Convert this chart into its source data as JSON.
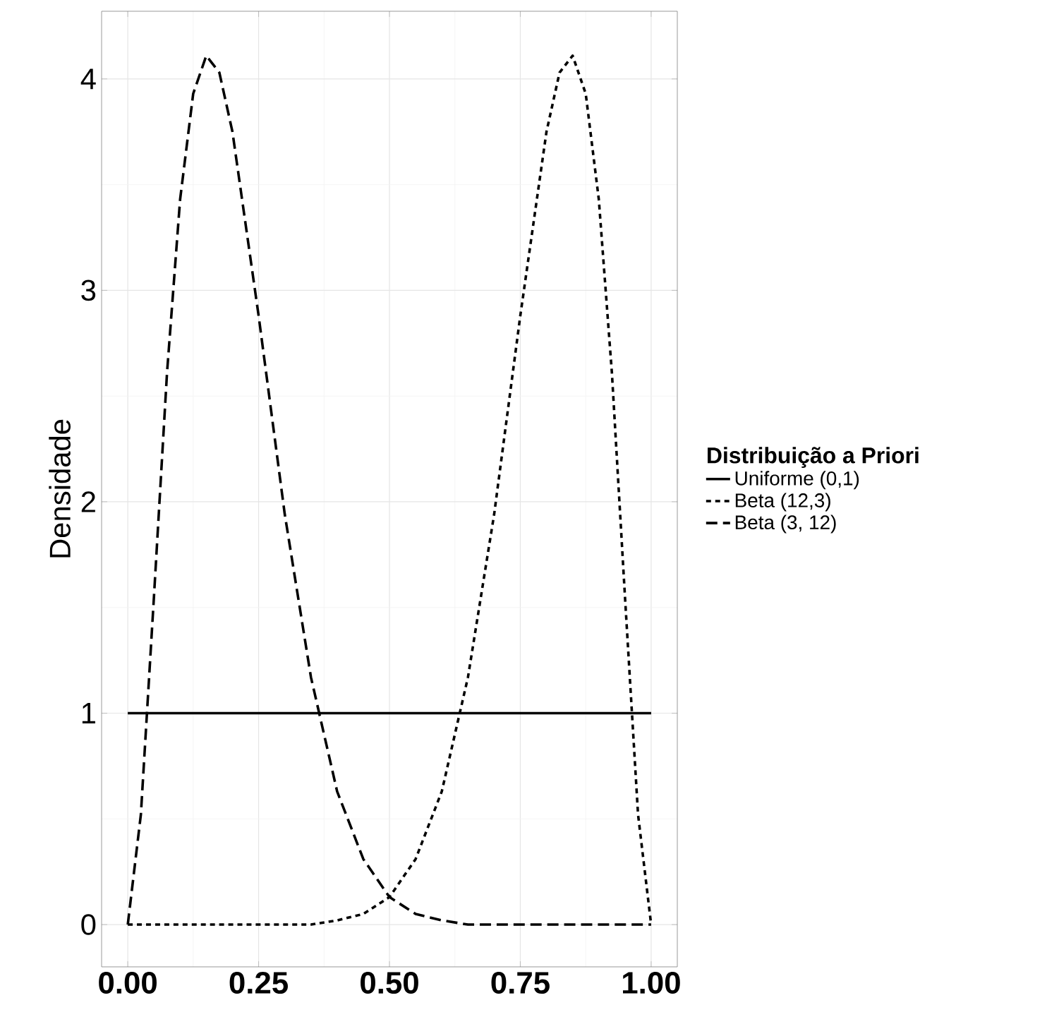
{
  "chart_data": {
    "type": "line",
    "ylabel": "Densidade",
    "legend_title": "Distribuição a Priori",
    "xlim": [
      -0.05,
      1.05
    ],
    "ylim": [
      -0.2,
      4.32
    ],
    "xticks": [
      {
        "value": 0,
        "label": "0.00"
      },
      {
        "value": 0.25,
        "label": "0.25"
      },
      {
        "value": 0.5,
        "label": "0.50"
      },
      {
        "value": 0.75,
        "label": "0.75"
      },
      {
        "value": 1,
        "label": "1.00"
      }
    ],
    "yticks": [
      0,
      1,
      2,
      3,
      4
    ],
    "grid": true,
    "legend": "right",
    "series": [
      {
        "name": "Uniforme (0,1)",
        "color": "#000000",
        "line_style": "solid",
        "x": [
          0,
          1
        ],
        "values": [
          1,
          1
        ]
      },
      {
        "name": "Beta (12,3)",
        "color": "#000000",
        "line_style": "dotted",
        "x": [
          0,
          0.1,
          0.2,
          0.3,
          0.35,
          0.4,
          0.45,
          0.5,
          0.55,
          0.6,
          0.65,
          0.7,
          0.75,
          0.8,
          0.825,
          0.85,
          0.875,
          0.9,
          0.925,
          0.95,
          0.975,
          1
        ],
        "values": [
          0,
          0,
          0,
          0,
          0,
          0.02,
          0.05,
          0.13,
          0.31,
          0.63,
          1.17,
          1.94,
          2.88,
          3.75,
          4.03,
          4.11,
          3.93,
          3.43,
          2.61,
          1.55,
          0.52,
          0
        ]
      },
      {
        "name": "Beta (3, 12)",
        "color": "#000000",
        "line_style": "dashed",
        "x": [
          0,
          0.025,
          0.05,
          0.075,
          0.1,
          0.125,
          0.15,
          0.175,
          0.2,
          0.25,
          0.3,
          0.35,
          0.4,
          0.45,
          0.5,
          0.55,
          0.6,
          0.65,
          0.7,
          0.8,
          0.9,
          1
        ],
        "values": [
          0,
          0.52,
          1.55,
          2.61,
          3.43,
          3.93,
          4.11,
          4.03,
          3.75,
          2.88,
          1.94,
          1.17,
          0.63,
          0.31,
          0.13,
          0.05,
          0.02,
          0,
          0,
          0,
          0,
          0
        ]
      }
    ]
  }
}
